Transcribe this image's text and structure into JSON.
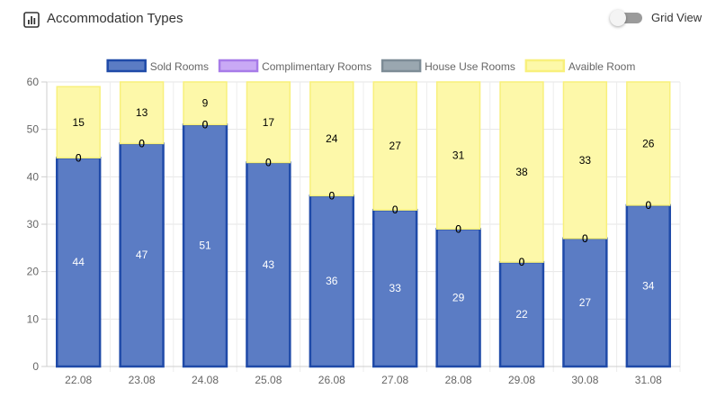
{
  "header": {
    "title": "Accommodation Types",
    "title_icon": "bar-chart-icon",
    "grid_toggle_label": "Grid View",
    "grid_toggle_on": false
  },
  "chart_data": {
    "type": "bar",
    "stacked": true,
    "categories": [
      "22.08",
      "23.08",
      "24.08",
      "25.08",
      "26.08",
      "27.08",
      "28.08",
      "29.08",
      "30.08",
      "31.08"
    ],
    "series": [
      {
        "name": "Sold Rooms",
        "values": [
          44,
          47,
          51,
          43,
          36,
          33,
          29,
          22,
          27,
          34
        ],
        "color": "#5b7cc4",
        "border": "#1f4aa8",
        "label_color": "#ffffff"
      },
      {
        "name": "Complimentary Rooms",
        "values": [
          0,
          0,
          0,
          0,
          0,
          0,
          0,
          0,
          0,
          0
        ],
        "color": "#c9a9f5",
        "border": "#a77be8",
        "label_color": "#000000"
      },
      {
        "name": "House Use Rooms",
        "values": [
          0,
          0,
          0,
          0,
          0,
          0,
          0,
          0,
          0,
          0
        ],
        "color": "#9aa7b0",
        "border": "#7d8c96",
        "label_color": "#000000"
      },
      {
        "name": "Avaible Room",
        "values": [
          15,
          13,
          9,
          17,
          24,
          27,
          31,
          38,
          33,
          26
        ],
        "color": "#fdf8a9",
        "border": "#f8f07c",
        "label_color": "#000000"
      }
    ],
    "ylim": [
      0,
      60
    ],
    "yticks": [
      0,
      10,
      20,
      30,
      40,
      50,
      60
    ],
    "grid": true,
    "legend_position": "top"
  }
}
